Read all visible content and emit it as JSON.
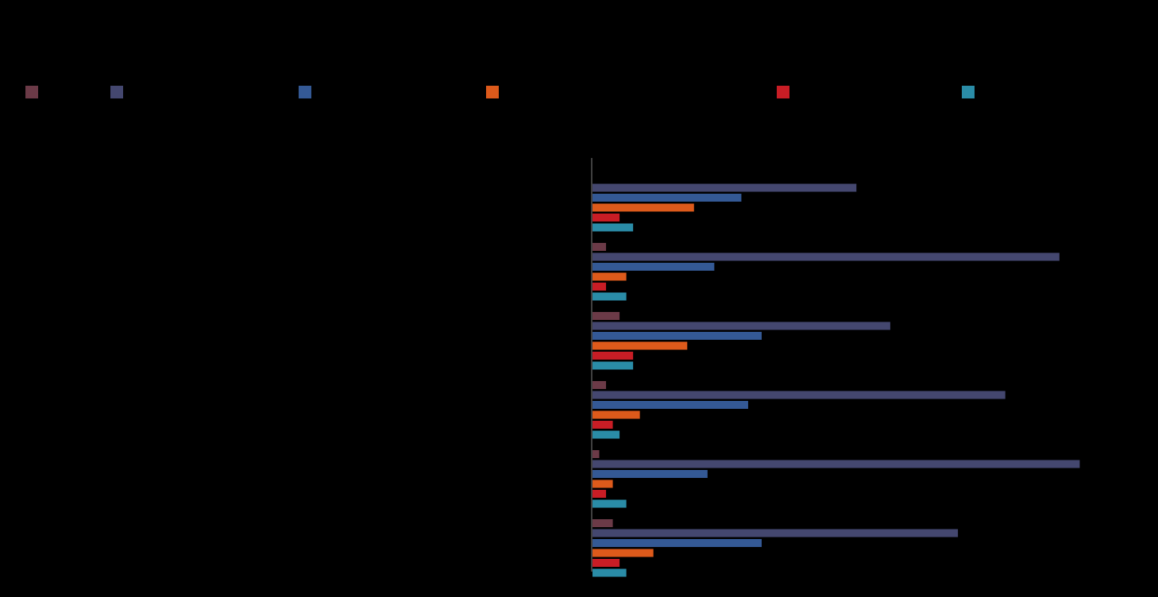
{
  "chart_data": {
    "type": "bar",
    "orientation": "horizontal",
    "title": "",
    "xlabel": "",
    "ylabel": "",
    "grid": false,
    "legend_position": "top",
    "categories": [
      "",
      "",
      "",
      "",
      "",
      ""
    ],
    "series": [
      {
        "name": "",
        "color": "#6b3a47",
        "values": [
          0,
          2,
          4,
          2,
          1,
          3
        ]
      },
      {
        "name": "",
        "color": "#44476f",
        "values": [
          39,
          69,
          44,
          61,
          72,
          54
        ]
      },
      {
        "name": "",
        "color": "#345995",
        "values": [
          22,
          18,
          25,
          23,
          17,
          25
        ]
      },
      {
        "name": "",
        "color": "#dd5a1b",
        "values": [
          15,
          5,
          14,
          7,
          3,
          9
        ]
      },
      {
        "name": "",
        "color": "#c81d25",
        "values": [
          4,
          2,
          6,
          3,
          2,
          4
        ]
      },
      {
        "name": "",
        "color": "#2a8ca7",
        "values": [
          6,
          5,
          6,
          4,
          5,
          5
        ]
      }
    ],
    "xlim": [
      0,
      75
    ]
  }
}
